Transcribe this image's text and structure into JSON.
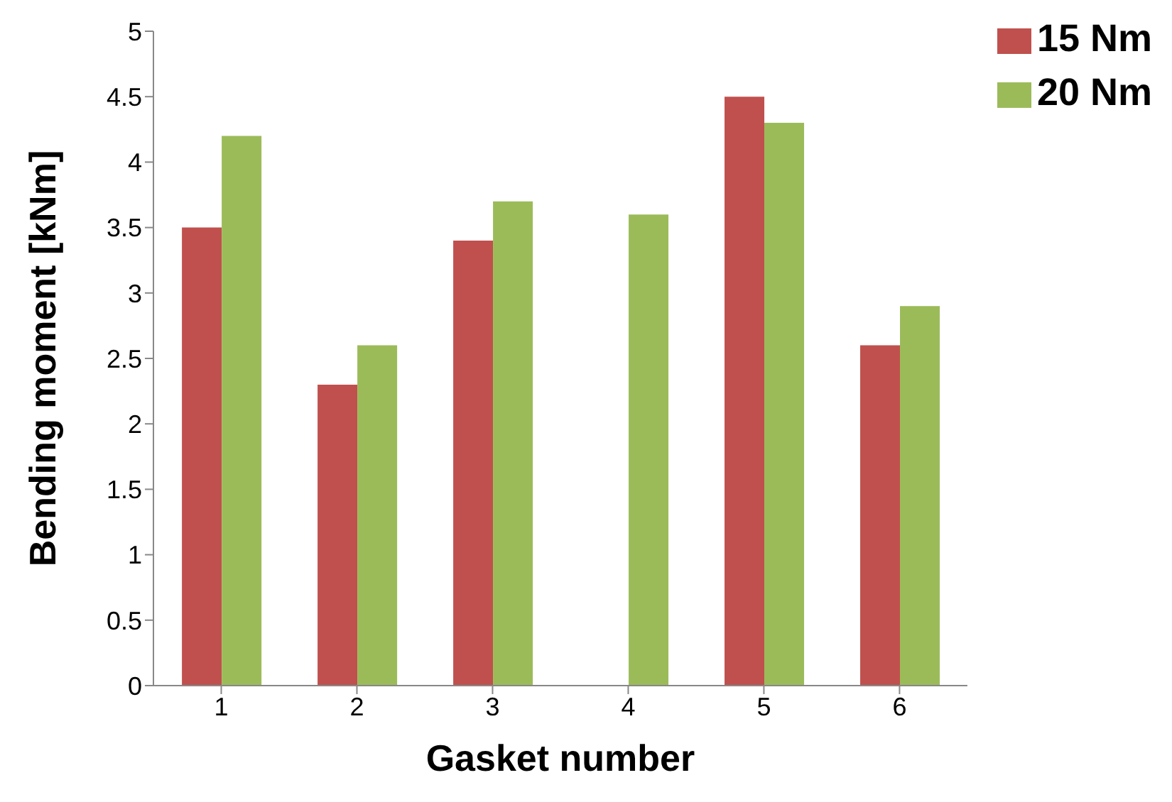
{
  "chart_data": {
    "type": "bar",
    "xlabel": "Gasket number",
    "ylabel": "Bending moment [kNm]",
    "categories": [
      "1",
      "2",
      "3",
      "4",
      "5",
      "6"
    ],
    "series": [
      {
        "name": "15 Nm",
        "color": "#c0504d",
        "values": [
          3.5,
          2.3,
          3.4,
          null,
          4.5,
          2.6
        ]
      },
      {
        "name": "20 Nm",
        "color": "#9bbb59",
        "values": [
          4.2,
          2.6,
          3.7,
          3.6,
          4.3,
          2.9
        ]
      }
    ],
    "ylim": [
      0,
      5
    ],
    "yticks": [
      0,
      0.5,
      1,
      1.5,
      2,
      2.5,
      3,
      3.5,
      4,
      4.5,
      5
    ],
    "grid": false,
    "legend": "top right"
  }
}
